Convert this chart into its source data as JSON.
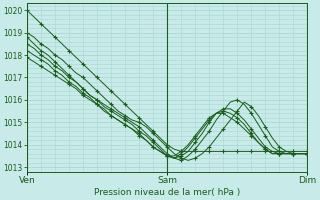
{
  "xlabel": "Pression niveau de la mer( hPa )",
  "bg_color": "#c8eae8",
  "grid_color": "#a8d8d4",
  "line_color": "#1a5c1a",
  "marker_color": "#1a5c1a",
  "ylim": [
    1012.8,
    1020.3
  ],
  "yticks": [
    1013,
    1014,
    1015,
    1016,
    1017,
    1018,
    1019,
    1020
  ],
  "xtick_labels": [
    "Ven",
    "Sam",
    "Dim"
  ],
  "xtick_positions": [
    0.0,
    0.5,
    1.0
  ],
  "vline_positions": [
    0.0,
    0.5,
    1.0
  ],
  "series": [
    [
      1020.0,
      1019.7,
      1019.4,
      1019.1,
      1018.8,
      1018.5,
      1018.2,
      1017.9,
      1017.6,
      1017.3,
      1017.0,
      1016.7,
      1016.4,
      1016.1,
      1015.8,
      1015.5,
      1015.2,
      1014.9,
      1014.6,
      1014.3,
      1014.0,
      1013.8,
      1013.7,
      1013.7,
      1013.7,
      1013.7,
      1013.7,
      1013.7,
      1013.7,
      1013.7,
      1013.7,
      1013.7,
      1013.7,
      1013.7,
      1013.7,
      1013.7,
      1013.7,
      1013.7,
      1013.7,
      1013.7,
      1013.7
    ],
    [
      1019.0,
      1018.8,
      1018.5,
      1018.3,
      1018.0,
      1017.8,
      1017.5,
      1017.2,
      1017.0,
      1016.7,
      1016.4,
      1016.1,
      1015.8,
      1015.5,
      1015.3,
      1015.1,
      1015.0,
      1014.8,
      1014.5,
      1014.2,
      1013.9,
      1013.6,
      1013.4,
      1013.3,
      1013.4,
      1013.6,
      1013.9,
      1014.3,
      1014.7,
      1015.1,
      1015.5,
      1015.9,
      1015.7,
      1015.3,
      1014.8,
      1014.3,
      1013.9,
      1013.7,
      1013.6,
      1013.6,
      1013.6
    ],
    [
      1018.8,
      1018.5,
      1018.2,
      1018.0,
      1017.7,
      1017.4,
      1017.1,
      1016.8,
      1016.5,
      1016.2,
      1016.0,
      1015.8,
      1015.6,
      1015.4,
      1015.2,
      1015.0,
      1014.8,
      1014.5,
      1014.2,
      1013.9,
      1013.6,
      1013.4,
      1013.3,
      1013.5,
      1013.8,
      1014.2,
      1014.6,
      1015.1,
      1015.5,
      1015.9,
      1016.0,
      1015.8,
      1015.4,
      1014.9,
      1014.4,
      1013.9,
      1013.7,
      1013.6,
      1013.6,
      1013.6,
      1013.6
    ],
    [
      1018.5,
      1018.3,
      1018.0,
      1017.8,
      1017.5,
      1017.3,
      1017.0,
      1016.8,
      1016.5,
      1016.2,
      1016.0,
      1015.7,
      1015.5,
      1015.3,
      1015.1,
      1014.9,
      1014.6,
      1014.4,
      1014.1,
      1013.8,
      1013.5,
      1013.4,
      1013.5,
      1013.7,
      1014.1,
      1014.5,
      1015.0,
      1015.4,
      1015.6,
      1015.6,
      1015.4,
      1015.1,
      1014.7,
      1014.3,
      1013.9,
      1013.7,
      1013.6,
      1013.6,
      1013.6,
      1013.6,
      1013.6
    ],
    [
      1018.2,
      1018.0,
      1017.8,
      1017.6,
      1017.3,
      1017.1,
      1016.8,
      1016.6,
      1016.3,
      1016.1,
      1015.8,
      1015.6,
      1015.3,
      1015.1,
      1014.9,
      1014.7,
      1014.5,
      1014.2,
      1013.9,
      1013.7,
      1013.5,
      1013.4,
      1013.6,
      1013.9,
      1014.3,
      1014.7,
      1015.1,
      1015.4,
      1015.5,
      1015.4,
      1015.2,
      1014.9,
      1014.5,
      1014.1,
      1013.8,
      1013.6,
      1013.6,
      1013.6,
      1013.6,
      1013.6,
      1013.6
    ],
    [
      1017.9,
      1017.7,
      1017.5,
      1017.3,
      1017.1,
      1016.9,
      1016.7,
      1016.5,
      1016.2,
      1016.0,
      1015.8,
      1015.5,
      1015.3,
      1015.1,
      1014.9,
      1014.7,
      1014.4,
      1014.2,
      1013.9,
      1013.7,
      1013.5,
      1013.5,
      1013.7,
      1014.0,
      1014.4,
      1014.8,
      1015.2,
      1015.4,
      1015.4,
      1015.2,
      1015.0,
      1014.7,
      1014.4,
      1014.1,
      1013.8,
      1013.6,
      1013.6,
      1013.6,
      1013.6,
      1013.6,
      1013.6
    ]
  ],
  "marker_step": 2,
  "figsize": [
    3.2,
    2.0
  ],
  "dpi": 100
}
